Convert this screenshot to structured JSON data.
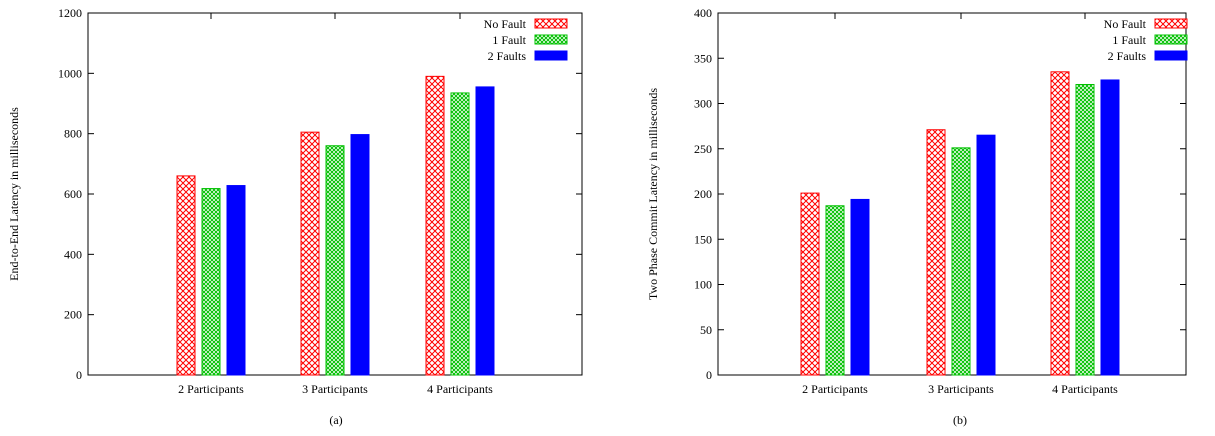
{
  "figures": [
    {
      "caption": "(a)",
      "chart_data": {
        "type": "bar",
        "title": "",
        "xlabel": "",
        "ylabel": "End-to-End Latency in milliseconds",
        "ylim": [
          0,
          1200
        ],
        "yticks": [
          0,
          200,
          400,
          600,
          800,
          1000,
          1200
        ],
        "categories": [
          "2 Participants",
          "3 Participants",
          "4 Participants"
        ],
        "legend_position": "top-right",
        "grid": false,
        "series": [
          {
            "name": "No Fault",
            "values": [
              660,
              805,
              990
            ],
            "color": "#ff0000",
            "pattern": "crosshatch"
          },
          {
            "name": "1 Fault",
            "values": [
              618,
              760,
              935
            ],
            "color": "#00c000",
            "pattern": "dense-crosshatch"
          },
          {
            "name": "2 Faults",
            "values": [
              628,
              797,
              955
            ],
            "color": "#0000ff",
            "pattern": "solid"
          }
        ]
      }
    },
    {
      "caption": "(b)",
      "chart_data": {
        "type": "bar",
        "title": "",
        "xlabel": "",
        "ylabel": "Two Phase Commit Latency in milliseconds",
        "ylim": [
          0,
          400
        ],
        "yticks": [
          0,
          50,
          100,
          150,
          200,
          250,
          300,
          350,
          400
        ],
        "categories": [
          "2 Participants",
          "3 Participants",
          "4 Participants"
        ],
        "legend_position": "top-right",
        "grid": false,
        "series": [
          {
            "name": "No Fault",
            "values": [
              201,
              271,
              335
            ],
            "color": "#ff0000",
            "pattern": "crosshatch"
          },
          {
            "name": "1 Fault",
            "values": [
              187,
              251,
              321
            ],
            "color": "#00c000",
            "pattern": "dense-crosshatch"
          },
          {
            "name": "2 Faults",
            "values": [
              194,
              265,
              326
            ],
            "color": "#0000ff",
            "pattern": "solid"
          }
        ]
      }
    }
  ]
}
